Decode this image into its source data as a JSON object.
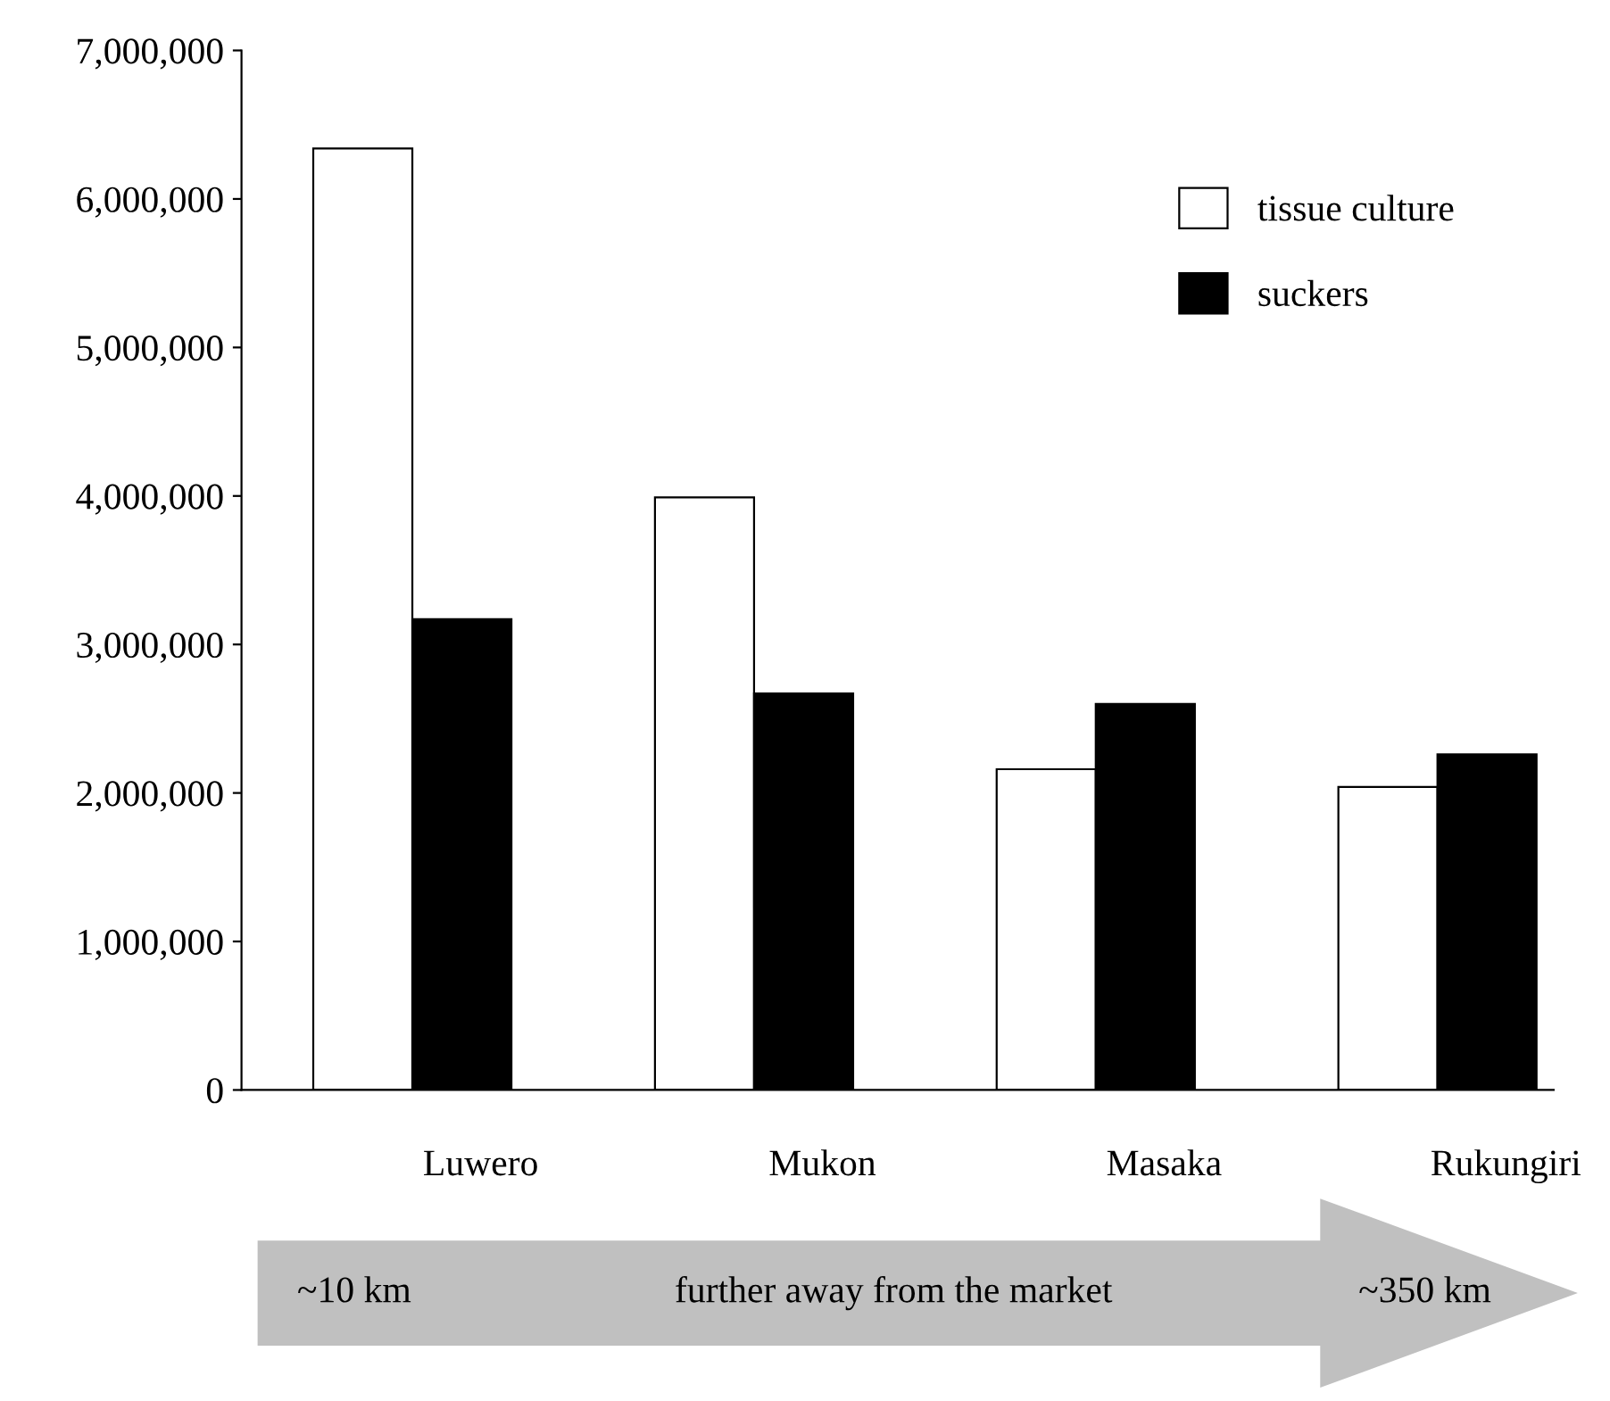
{
  "chart_data": {
    "type": "bar",
    "categories": [
      "Luwero",
      "Mukon",
      "Masaka",
      "Rukungiri"
    ],
    "series": [
      {
        "name": "tissue culture",
        "color": "#ffffff",
        "values": [
          6340000,
          3990000,
          2160000,
          2040000
        ]
      },
      {
        "name": "suckers",
        "color": "#000000",
        "values": [
          3170000,
          2670000,
          2600000,
          2260000
        ]
      }
    ],
    "ylim": [
      0,
      7000000
    ],
    "yticks": [
      {
        "value": 0,
        "label": "0"
      },
      {
        "value": 1000000,
        "label": "1,000,000"
      },
      {
        "value": 2000000,
        "label": "2,000,000"
      },
      {
        "value": 3000000,
        "label": "3,000,000"
      },
      {
        "value": 4000000,
        "label": "4,000,000"
      },
      {
        "value": 5000000,
        "label": "5,000,000"
      },
      {
        "value": 6000000,
        "label": "6,000,000"
      },
      {
        "value": 7000000,
        "label": "7,000,000"
      }
    ],
    "grid": false,
    "legend": "top right",
    "annotations": [
      "~10 km",
      "further away from the market",
      "~350 km"
    ]
  }
}
